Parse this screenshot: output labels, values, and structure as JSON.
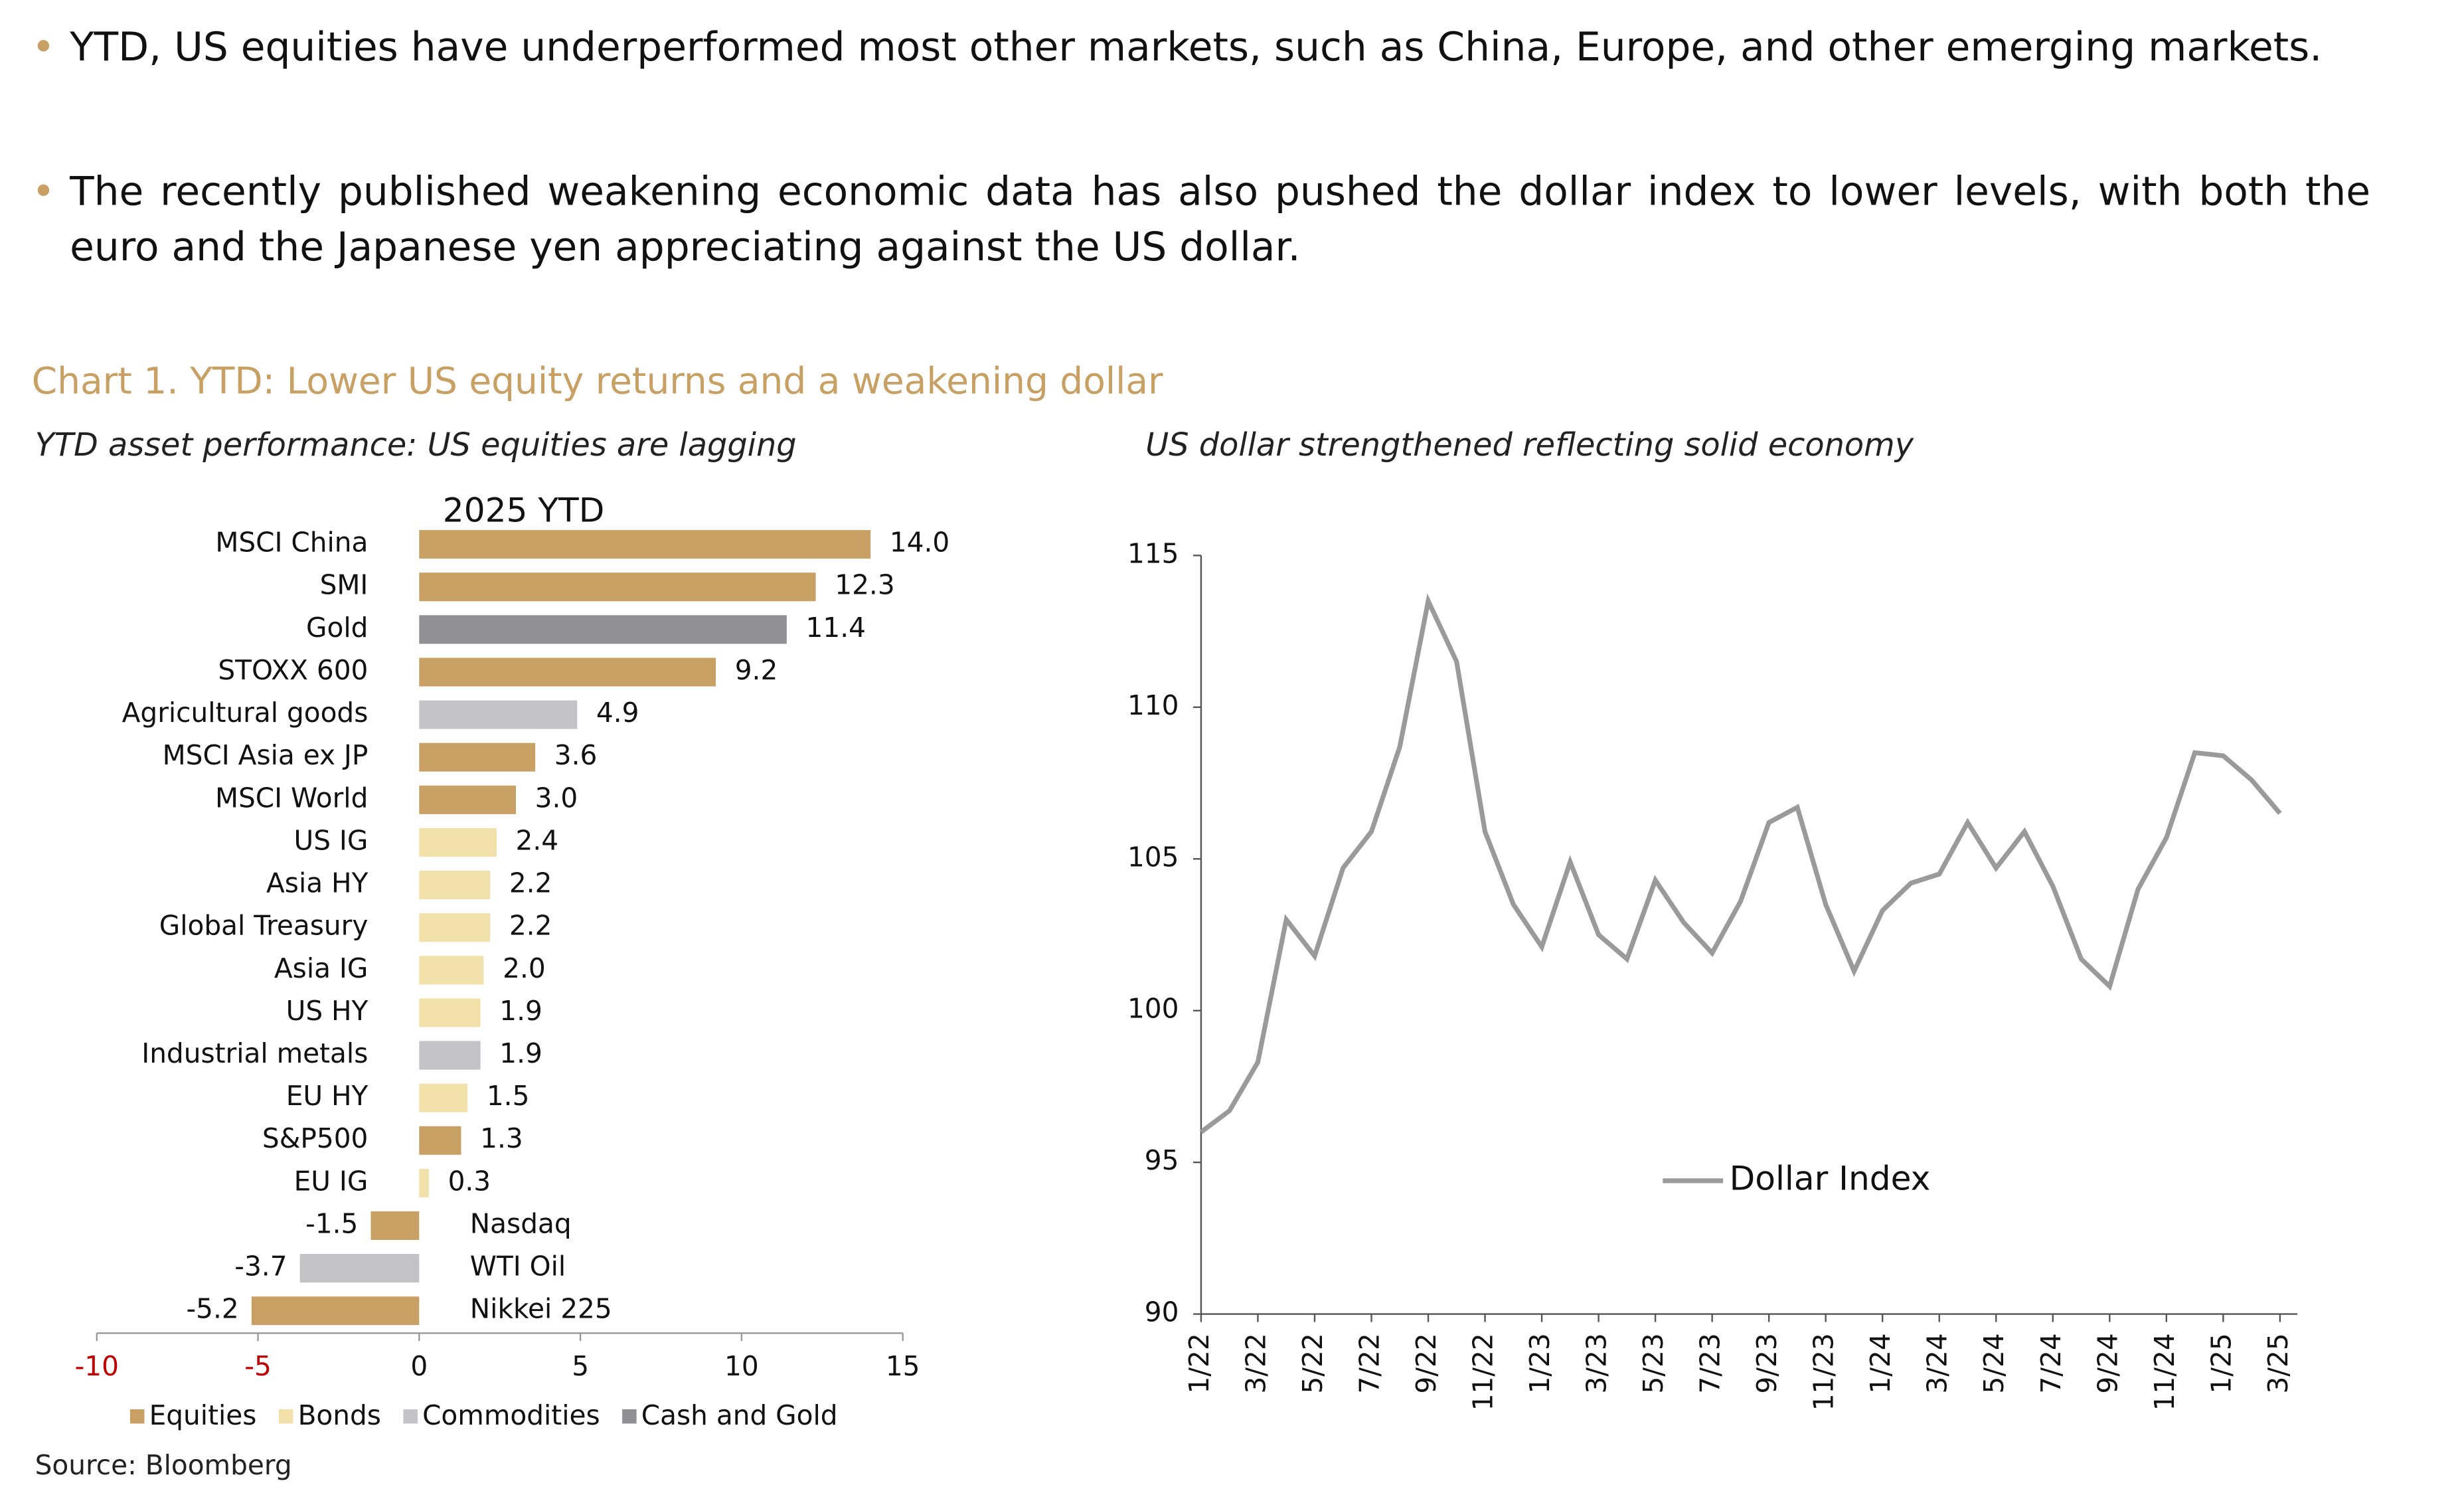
{
  "bullets": [
    "YTD, US equities have underperformed most other markets, such as China, Europe, and other emerging markets.",
    "The recently published weakening economic data has also pushed the dollar index to lower levels, with both the euro and the Japanese yen appreciating against the US dollar."
  ],
  "section_title": "Chart 1. YTD: Lower US equity returns and a weakening dollar",
  "source": "Source: Bloomberg",
  "chart_data": [
    {
      "type": "hbar",
      "subtitle": "YTD asset performance: US equities are lagging",
      "title": "2025 YTD",
      "categories": [
        "MSCI China",
        "SMI",
        "Gold",
        "STOXX 600",
        "Agricultural goods",
        "MSCI Asia ex JP",
        "MSCI World",
        "US IG",
        "Asia HY",
        "Global Treasury",
        "Asia IG",
        "US HY",
        "Industrial metals",
        "EU HY",
        "S&P500",
        "EU IG",
        "Nasdaq",
        "WTI Oil",
        "Nikkei 225"
      ],
      "series": [
        {
          "name": "Equities",
          "color": "#c9a063",
          "values": [
            14.0,
            12.3,
            null,
            9.2,
            null,
            3.6,
            3.0,
            null,
            null,
            null,
            null,
            null,
            null,
            null,
            1.3,
            null,
            -1.5,
            null,
            -5.2
          ],
          "value_labels": [
            "14.0",
            null,
            null,
            null,
            null,
            null,
            "3.0",
            null,
            null,
            null,
            null,
            null,
            null,
            null,
            null,
            null,
            null,
            null,
            null
          ]
        },
        {
          "name": "Bonds",
          "color": "#f1e0aa",
          "values": [
            null,
            null,
            null,
            null,
            null,
            null,
            null,
            2.4,
            2.2,
            2.2,
            2.0,
            1.9,
            null,
            1.5,
            null,
            0.3,
            null,
            null,
            null
          ],
          "value_labels": [
            null,
            null,
            null,
            null,
            null,
            null,
            null,
            null,
            null,
            null,
            "2.0",
            null,
            null,
            null,
            null,
            null,
            null,
            null,
            null
          ]
        },
        {
          "name": "Commodities",
          "color": "#c3c3c7",
          "values": [
            null,
            null,
            null,
            null,
            4.9,
            null,
            null,
            null,
            null,
            null,
            null,
            null,
            1.9,
            null,
            null,
            null,
            null,
            -3.7,
            null
          ]
        },
        {
          "name": "Cash and Gold",
          "color": "#8f8f94",
          "values": [
            null,
            null,
            11.4,
            null,
            null,
            null,
            null,
            null,
            null,
            null,
            null,
            null,
            null,
            null,
            null,
            null,
            null,
            null,
            null
          ]
        }
      ],
      "xlim": [
        -10,
        15
      ],
      "xticks": [
        -10,
        -5,
        0,
        5,
        10,
        15
      ],
      "negative_tick_color": "#c00000"
    },
    {
      "type": "line",
      "subtitle": "US dollar strengthened reflecting solid economy",
      "x": [
        "1/22",
        null,
        "3/22",
        null,
        "5/22",
        null,
        "7/22",
        null,
        "9/22",
        null,
        "11/22",
        null,
        "1/23",
        null,
        "3/23",
        null,
        "5/23",
        null,
        "7/23",
        null,
        "9/23",
        null,
        "11/23",
        null,
        "1/24",
        null,
        "3/24",
        null,
        "5/24",
        null,
        "7/24",
        null,
        "9/24",
        null,
        "11/24",
        null,
        "1/25",
        null,
        "3/25"
      ],
      "series": [
        {
          "name": "Dollar Index",
          "color": "#9a9a9a",
          "values": [
            96.0,
            96.7,
            98.3,
            103.0,
            101.8,
            104.7,
            105.9,
            108.7,
            113.5,
            111.5,
            105.9,
            103.5,
            102.1,
            104.9,
            102.5,
            101.7,
            104.3,
            102.9,
            101.9,
            103.6,
            106.2,
            106.7,
            103.5,
            101.3,
            103.3,
            104.2,
            104.5,
            106.2,
            104.7,
            105.9,
            104.1,
            101.7,
            100.8,
            104.0,
            105.7,
            108.5,
            108.4,
            107.6,
            106.5
          ]
        }
      ],
      "ylim": [
        90,
        115
      ],
      "yticks": [
        90,
        95,
        100,
        105,
        110,
        115
      ]
    }
  ]
}
